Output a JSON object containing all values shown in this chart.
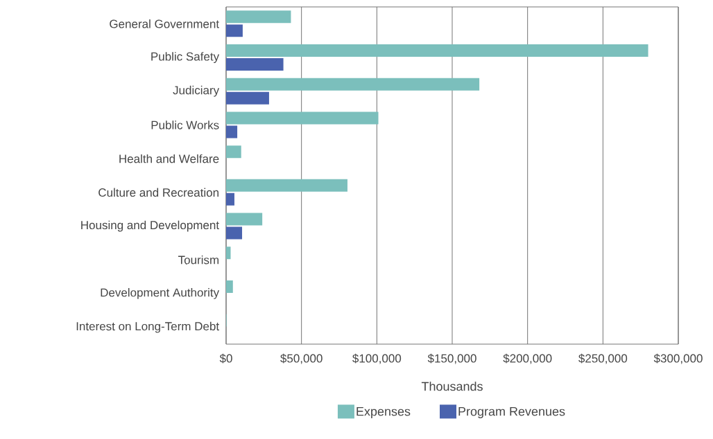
{
  "chart_data": {
    "type": "bar",
    "orientation": "horizontal",
    "xlabel": "Thousands",
    "categories": [
      "General Government",
      "Public Safety",
      "Judiciary",
      "Public Works",
      "Health and Welfare",
      "Culture and Recreation",
      "Housing and Development",
      "Tourism",
      "Development Authority",
      "Interest on Long-Term Debt"
    ],
    "series": [
      {
        "name": "Expenses",
        "color": "#7bbfbc",
        "values": [
          43000,
          280000,
          168000,
          101000,
          10000,
          80500,
          24000,
          3000,
          4500,
          300
        ]
      },
      {
        "name": "Program Revenues",
        "color": "#4a63ae",
        "values": [
          11000,
          38000,
          28500,
          7400,
          null,
          5500,
          10600,
          null,
          null,
          null
        ]
      }
    ],
    "xlim": [
      0,
      300000
    ],
    "xticks": [
      {
        "value": 0,
        "label": "$0"
      },
      {
        "value": 50000,
        "label": "$50,000"
      },
      {
        "value": 100000,
        "label": "$100,000"
      },
      {
        "value": 150000,
        "label": "$150,000"
      },
      {
        "value": 200000,
        "label": "$200,000"
      },
      {
        "value": 250000,
        "label": "$250,000"
      },
      {
        "value": 300000,
        "label": "$300,000"
      }
    ],
    "grid": "x",
    "legend": "bottom"
  }
}
